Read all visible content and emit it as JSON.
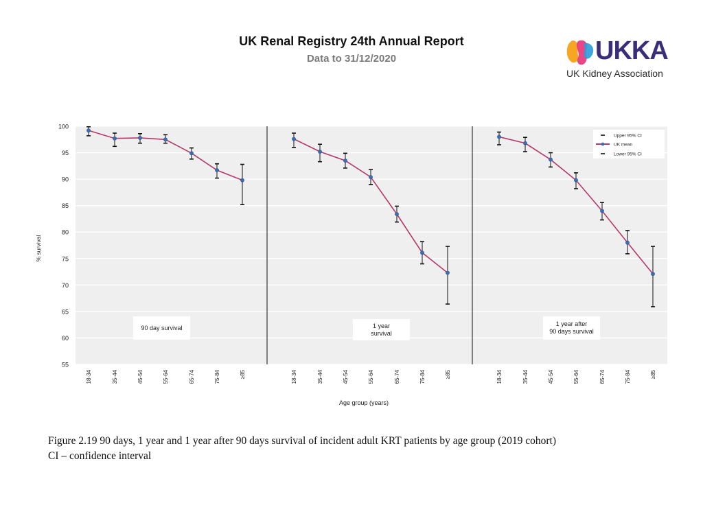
{
  "header": {
    "title": "UK Renal Registry 24th Annual Report",
    "subtitle": "Data to 31/12/2020"
  },
  "logo": {
    "wordmark": "UKKA",
    "tagline": "UK Kidney Association",
    "colors": [
      "#f6a623",
      "#e8357a",
      "#2b9bd8",
      "#3a2e7a"
    ]
  },
  "chart_data": {
    "type": "line",
    "ylabel": "% survival",
    "xlabel": "Age group (years)",
    "ylim": [
      55,
      100
    ],
    "yticks": [
      100,
      95,
      90,
      85,
      80,
      75,
      70,
      65,
      60,
      55
    ],
    "grid": true,
    "legend_position": "top-right",
    "legend": {
      "upper": "Upper 95% CI",
      "mean": "UK mean",
      "lower": "Lower 95% CI"
    },
    "categories": [
      "18-34",
      "35-44",
      "45-54",
      "55-64",
      "65-74",
      "75-84",
      "≥85"
    ],
    "colors": {
      "line": "#b5386a",
      "marker": "#3b6fb4",
      "errorbar": "#111111",
      "plot_bg": "#efefef"
    },
    "panels": [
      {
        "label": "90 day survival",
        "mean": [
          99.2,
          97.7,
          97.8,
          97.5,
          94.9,
          91.7,
          89.8
        ],
        "upper": [
          99.9,
          98.7,
          98.6,
          98.4,
          95.9,
          92.9,
          92.8
        ],
        "lower": [
          98.2,
          96.2,
          96.8,
          96.8,
          93.8,
          90.2,
          85.2
        ]
      },
      {
        "label": "1 year\nsurvival",
        "mean": [
          97.6,
          95.2,
          93.5,
          90.4,
          83.4,
          76.1,
          72.3
        ],
        "upper": [
          98.7,
          96.6,
          94.9,
          91.8,
          84.9,
          78.2,
          77.3
        ],
        "lower": [
          96.0,
          93.3,
          92.1,
          89.0,
          81.9,
          74.0,
          66.4
        ]
      },
      {
        "label": "1 year after\n90  days survival",
        "mean": [
          98.0,
          96.8,
          93.7,
          89.8,
          84.0,
          78.0,
          72.1
        ],
        "upper": [
          98.9,
          97.9,
          95.0,
          91.2,
          85.6,
          80.3,
          77.3
        ],
        "lower": [
          96.5,
          95.2,
          92.3,
          88.2,
          82.3,
          75.9,
          65.9
        ]
      }
    ]
  },
  "caption": {
    "line1": "Figure 2.19 90 days, 1 year and 1 year after 90 days survival of incident adult KRT patients by age group (2019 cohort)",
    "line2": "CI – confidence interval"
  }
}
